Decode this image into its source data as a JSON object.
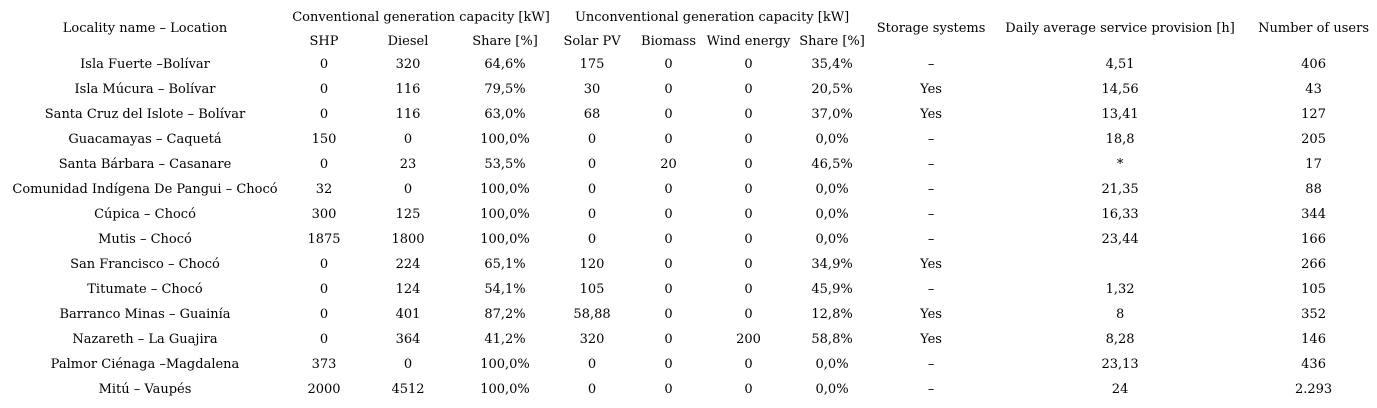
{
  "header": {
    "locality": "Locality name – Location",
    "groups": [
      {
        "label": "Conventional generation capacity [kW]",
        "span": 3
      },
      {
        "label": "Unconventional generation capacity [kW]",
        "span": 4
      }
    ],
    "subcolumns": [
      "SHP",
      "Diesel",
      "Share [%]",
      "Solar PV",
      "Biomass",
      "Wind energy",
      "Share [%]"
    ],
    "storage": "Storage systems",
    "daily": "Daily average service provision [h]",
    "users": "Number of users"
  },
  "rows": [
    [
      "Isla Fuerte –Bolívar",
      "0",
      "320",
      "64,6%",
      "175",
      "0",
      "0",
      "35,4%",
      "–",
      "4,51",
      "406"
    ],
    [
      "Isla Múcura – Bolívar",
      "0",
      "116",
      "79,5%",
      "30",
      "0",
      "0",
      "20,5%",
      "Yes",
      "14,56",
      "43"
    ],
    [
      "Santa Cruz del Islote – Bolívar",
      "0",
      "116",
      "63,0%",
      "68",
      "0",
      "0",
      "37,0%",
      "Yes",
      "13,41",
      "127"
    ],
    [
      "Guacamayas – Caquetá",
      "150",
      "0",
      "100,0%",
      "0",
      "0",
      "0",
      "0,0%",
      "–",
      "18,8",
      "205"
    ],
    [
      "Santa Bárbara – Casanare",
      "0",
      "23",
      "53,5%",
      "0",
      "20",
      "0",
      "46,5%",
      "–",
      "*",
      "17"
    ],
    [
      "Comunidad Indígena De Pangui – Chocó",
      "32",
      "0",
      "100,0%",
      "0",
      "0",
      "0",
      "0,0%",
      "–",
      "21,35",
      "88"
    ],
    [
      "Cúpica – Chocó",
      "300",
      "125",
      "100,0%",
      "0",
      "0",
      "0",
      "0,0%",
      "–",
      "16,33",
      "344"
    ],
    [
      "Mutis – Chocó",
      "1875",
      "1800",
      "100,0%",
      "0",
      "0",
      "0",
      "0,0%",
      "–",
      "23,44",
      "166"
    ],
    [
      "San Francisco – Chocó",
      "0",
      "224",
      "65,1%",
      "120",
      "0",
      "0",
      "34,9%",
      "Yes",
      "",
      "266"
    ],
    [
      "Titumate – Chocó",
      "0",
      "124",
      "54,1%",
      "105",
      "0",
      "0",
      "45,9%",
      "–",
      "1,32",
      "105"
    ],
    [
      "Barranco Minas – Guainía",
      "0",
      "401",
      "87,2%",
      "58,88",
      "0",
      "0",
      "12,8%",
      "Yes",
      "8",
      "352"
    ],
    [
      "Nazareth – La Guajira",
      "0",
      "364",
      "41,2%",
      "320",
      "0",
      "200",
      "58,8%",
      "Yes",
      "8,28",
      "146"
    ],
    [
      "Palmor Ciénaga –Magdalena",
      "373",
      "0",
      "100,0%",
      "0",
      "0",
      "0",
      "0,0%",
      "–",
      "23,13",
      "436"
    ],
    [
      "Mitú – Vaupés",
      "2000",
      "4512",
      "100,0%",
      "0",
      "0",
      "0",
      "0,0%",
      "–",
      "24",
      "2.293"
    ]
  ]
}
